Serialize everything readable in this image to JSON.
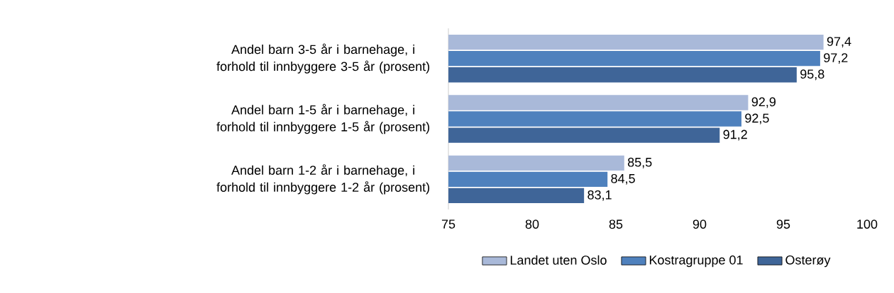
{
  "chart_data": {
    "type": "bar",
    "orientation": "horizontal",
    "categories": [
      "Andel barn 3-5 år i barnehage, i forhold til innbyggere 3-5 år (prosent)",
      "Andel barn 1-5 år i barnehage, i forhold til innbyggere 1-5 år (prosent)",
      "Andel barn 1-2 år i barnehage, i forhold til innbyggere 1-2 år (prosent)"
    ],
    "series": [
      {
        "name": "Landet uten Oslo",
        "color": "#a9b9d9",
        "values": [
          97.4,
          92.9,
          85.5
        ],
        "value_labels": [
          "97,4",
          "92,9",
          "85,5"
        ]
      },
      {
        "name": "Kostragruppe 01",
        "color": "#4f81bd",
        "values": [
          97.2,
          92.5,
          84.5
        ],
        "value_labels": [
          "97,2",
          "92,5",
          "84,5"
        ]
      },
      {
        "name": "Osterøy",
        "color": "#3f6598",
        "values": [
          95.8,
          91.2,
          83.1
        ],
        "value_labels": [
          "95,8",
          "91,2",
          "83,1"
        ]
      }
    ],
    "xlim": [
      75,
      100
    ],
    "xticks": [
      75,
      80,
      85,
      90,
      95,
      100
    ],
    "legend": "bottom"
  }
}
